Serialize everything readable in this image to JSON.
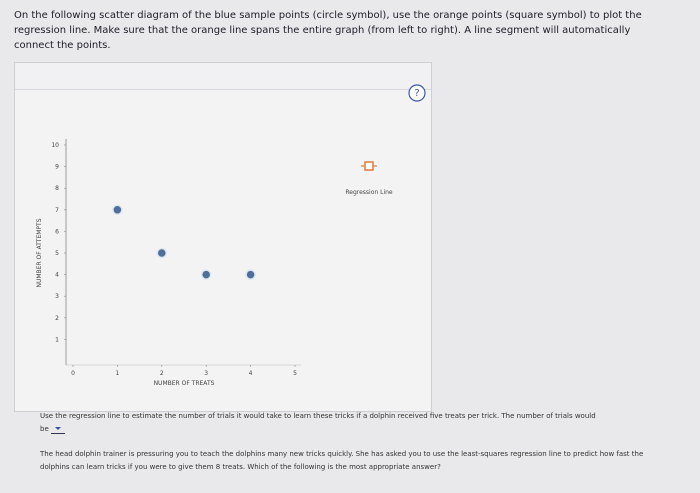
{
  "question": "On the following scatter diagram of the blue sample points (circle symbol), use the orange points (square symbol) to plot the regression line. Make sure that the orange line spans the entire graph (from left to right). A line segment will automatically connect the points.",
  "help": "?",
  "chart_data": {
    "type": "scatter",
    "x_label": "NUMBER OF TREATS",
    "y_label": "NUMBER OF ATTEMPTS",
    "x": [
      1,
      2,
      3,
      4
    ],
    "values": [
      7,
      5,
      4,
      4
    ],
    "color": "#4d6f9a",
    "xlim": [
      0,
      5
    ],
    "ylim": [
      0,
      10
    ],
    "xticks": [
      0,
      1,
      2,
      3,
      4,
      5
    ],
    "yticks": [
      1,
      2,
      3,
      4,
      5,
      6,
      7,
      8,
      9,
      10
    ],
    "legend": {
      "label": "Regression Line",
      "color": "#e07a3a"
    }
  },
  "part1": {
    "text": "Use the regression line to estimate the number of trials it would take to learn these tricks if a dolphin received five treats per trick. The number of trials would",
    "tail": "be"
  },
  "part2": {
    "text": "The head dolphin trainer is pressuring you to teach the dolphins many new tricks quickly. She has asked you to use the least-squares regression line to predict how fast the dolphins can learn tricks if you were to give them 8 treats. Which of the following is the most appropriate answer?"
  }
}
